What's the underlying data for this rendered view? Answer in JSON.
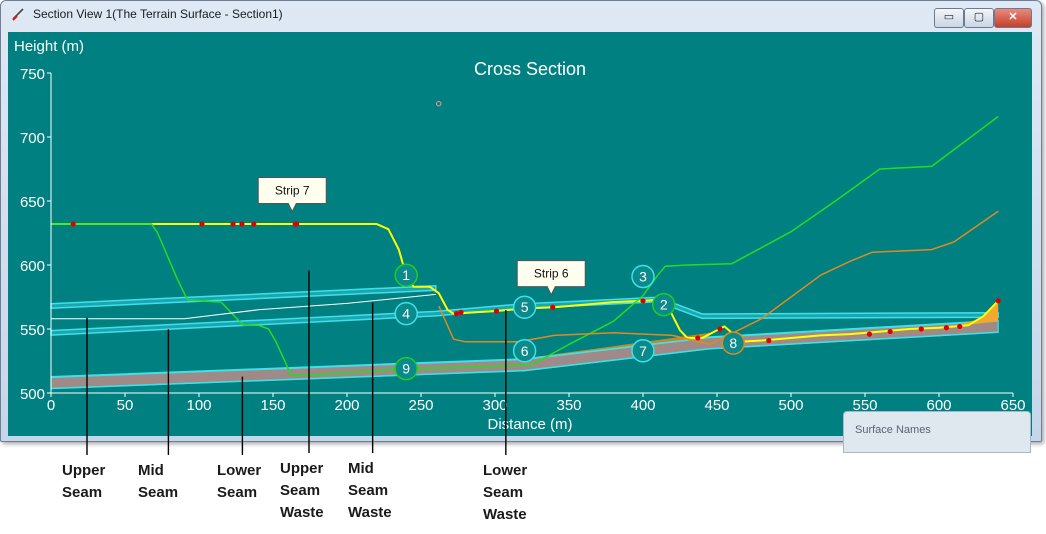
{
  "window": {
    "title": "Section View 1(The Terrain Surface - Section1)",
    "controls": {
      "minimize": "▭",
      "maximize": "▢",
      "close": "✕"
    }
  },
  "surface_panel": {
    "label": "Surface Names"
  },
  "colors": {
    "background": "#008080",
    "terrain": "#ffff00",
    "seam_band": "#40e0e8",
    "strip_line": "#22dd22",
    "orange_surface": "#e08a1e",
    "grey_fill": "#a08a88",
    "marker": "#dd0000",
    "callout_fill": "#fffff0"
  },
  "chart_data": {
    "type": "line",
    "title": "Cross Section",
    "xlabel": "Distance (m)",
    "ylabel": "Height (m)",
    "xlim": [
      0,
      650
    ],
    "ylim": [
      500,
      750
    ],
    "xticks": [
      0,
      50,
      100,
      150,
      200,
      250,
      300,
      350,
      400,
      450,
      500,
      550,
      600,
      650
    ],
    "yticks": [
      500,
      550,
      600,
      650,
      700,
      750
    ],
    "grid": false,
    "series": [
      {
        "key": "terrain",
        "style": "terrain",
        "points": [
          [
            0,
            632
          ],
          [
            220,
            632
          ],
          [
            228,
            628
          ],
          [
            235,
            612
          ],
          [
            240,
            592
          ],
          [
            245,
            583
          ],
          [
            256,
            583
          ],
          [
            262,
            578
          ],
          [
            268,
            565
          ],
          [
            272,
            562
          ],
          [
            285,
            563
          ],
          [
            300,
            564
          ],
          [
            320,
            566
          ],
          [
            340,
            567
          ],
          [
            360,
            569
          ],
          [
            380,
            571
          ],
          [
            400,
            572
          ],
          [
            412,
            573
          ],
          [
            418,
            565
          ],
          [
            425,
            549
          ],
          [
            430,
            543
          ],
          [
            440,
            543
          ],
          [
            445,
            546
          ],
          [
            455,
            552
          ],
          [
            460,
            547
          ],
          [
            465,
            540
          ],
          [
            480,
            541
          ],
          [
            500,
            543
          ],
          [
            520,
            545
          ],
          [
            540,
            546
          ],
          [
            560,
            548
          ],
          [
            580,
            550
          ],
          [
            600,
            551
          ],
          [
            620,
            553
          ],
          [
            630,
            560
          ],
          [
            640,
            572
          ]
        ]
      },
      {
        "key": "strip_a",
        "style": "green",
        "points": [
          [
            0,
            632
          ],
          [
            68,
            632
          ],
          [
            72,
            625
          ],
          [
            85,
            590
          ],
          [
            92,
            573
          ],
          [
            100,
            572
          ],
          [
            115,
            571
          ],
          [
            124,
            560
          ],
          [
            130,
            553
          ],
          [
            140,
            553
          ],
          [
            147,
            550
          ],
          [
            152,
            540
          ],
          [
            158,
            525
          ],
          [
            162,
            514
          ],
          [
            175,
            514
          ],
          [
            200,
            516
          ],
          [
            240,
            519
          ]
        ]
      },
      {
        "key": "strip_b",
        "style": "green",
        "points": [
          [
            240,
            519
          ],
          [
            280,
            520
          ],
          [
            325,
            522
          ],
          [
            350,
            538
          ],
          [
            380,
            556
          ],
          [
            400,
            576
          ],
          [
            410,
            592
          ],
          [
            415,
            599
          ],
          [
            430,
            600
          ],
          [
            460,
            601
          ],
          [
            500,
            626
          ],
          [
            530,
            650
          ],
          [
            560,
            675
          ],
          [
            595,
            677
          ],
          [
            640,
            716
          ]
        ]
      },
      {
        "key": "mid_waste",
        "style": "white",
        "points": [
          [
            0,
            558
          ],
          [
            90,
            558
          ],
          [
            140,
            565
          ],
          [
            200,
            570
          ],
          [
            260,
            577
          ]
        ]
      },
      {
        "key": "orange_surface",
        "style": "orange",
        "points": [
          [
            262,
            568
          ],
          [
            272,
            542
          ],
          [
            280,
            540
          ],
          [
            300,
            540
          ],
          [
            316,
            540
          ],
          [
            340,
            545
          ],
          [
            380,
            547
          ],
          [
            420,
            545
          ],
          [
            445,
            538
          ],
          [
            480,
            558
          ],
          [
            500,
            575
          ],
          [
            520,
            592
          ],
          [
            540,
            603
          ],
          [
            555,
            610
          ],
          [
            595,
            612
          ],
          [
            610,
            618
          ],
          [
            640,
            642
          ]
        ]
      }
    ],
    "bands": [
      {
        "key": "upper_seam",
        "style": "seam",
        "points": [
          [
            0,
            568
          ],
          [
            260,
            582
          ]
        ]
      },
      {
        "key": "mid_seam",
        "style": "seam",
        "points": [
          [
            0,
            547
          ],
          [
            260,
            562
          ],
          [
            320,
            568
          ],
          [
            410,
            573
          ],
          [
            440,
            560
          ],
          [
            640,
            561
          ]
        ]
      },
      {
        "key": "lower_seam",
        "style": "seam_fill",
        "points": [
          [
            0,
            508
          ],
          [
            320,
            522
          ],
          [
            445,
            539
          ],
          [
            640,
            552
          ]
        ]
      }
    ],
    "markers": [
      [
        15,
        632
      ],
      [
        102,
        632
      ],
      [
        123,
        632
      ],
      [
        129,
        632
      ],
      [
        137,
        632
      ],
      [
        165,
        632
      ],
      [
        166,
        632
      ],
      [
        274,
        562
      ],
      [
        277,
        563
      ],
      [
        301,
        564
      ],
      [
        339,
        567
      ],
      [
        400,
        572
      ],
      [
        437,
        543
      ],
      [
        452,
        550
      ],
      [
        485,
        541
      ],
      [
        553,
        546
      ],
      [
        567,
        548
      ],
      [
        588,
        550
      ],
      [
        605,
        551
      ],
      [
        614,
        552
      ],
      [
        640,
        572
      ]
    ],
    "open_marker": [
      262,
      726
    ],
    "callouts": [
      {
        "label": "Strip 7",
        "x": 163,
        "y": 634
      },
      {
        "label": "Strip 6",
        "x": 338,
        "y": 569
      }
    ],
    "circle_labels": [
      {
        "label": "1",
        "x": 240,
        "y": 592,
        "color": "#22cc22"
      },
      {
        "label": "2",
        "x": 414,
        "y": 569,
        "color": "#22cc22"
      },
      {
        "label": "3",
        "x": 400,
        "y": 591,
        "color": "#40e0e8"
      },
      {
        "label": "4",
        "x": 240,
        "y": 562,
        "color": "#40e0e8"
      },
      {
        "label": "5",
        "x": 320,
        "y": 567,
        "color": "#40e0e8"
      },
      {
        "label": "6",
        "x": 320,
        "y": 533,
        "color": "#40e0e8"
      },
      {
        "label": "7",
        "x": 400,
        "y": 533,
        "color": "#40e0e8"
      },
      {
        "label": "8",
        "x": 461,
        "y": 539,
        "color": "#e08a1e"
      },
      {
        "label": "9",
        "x": 240,
        "y": 519,
        "color": "#22cc22"
      }
    ]
  },
  "annotations": [
    {
      "lines": [
        "Upper",
        "Seam"
      ],
      "x": 25,
      "y": 558
    },
    {
      "lines": [
        "Mid",
        "Seam"
      ],
      "x": 80,
      "y": 549
    },
    {
      "lines": [
        "Lower",
        "Seam"
      ],
      "x": 130,
      "y": 512
    },
    {
      "lines": [
        "Upper",
        "Seam",
        "Waste"
      ],
      "x": 175,
      "y": 595
    },
    {
      "lines": [
        "Mid",
        "Seam",
        "Waste"
      ],
      "x": 218,
      "y": 570
    },
    {
      "lines": [
        "Lower",
        "Seam",
        "Waste"
      ],
      "x": 308,
      "y": 564
    }
  ]
}
